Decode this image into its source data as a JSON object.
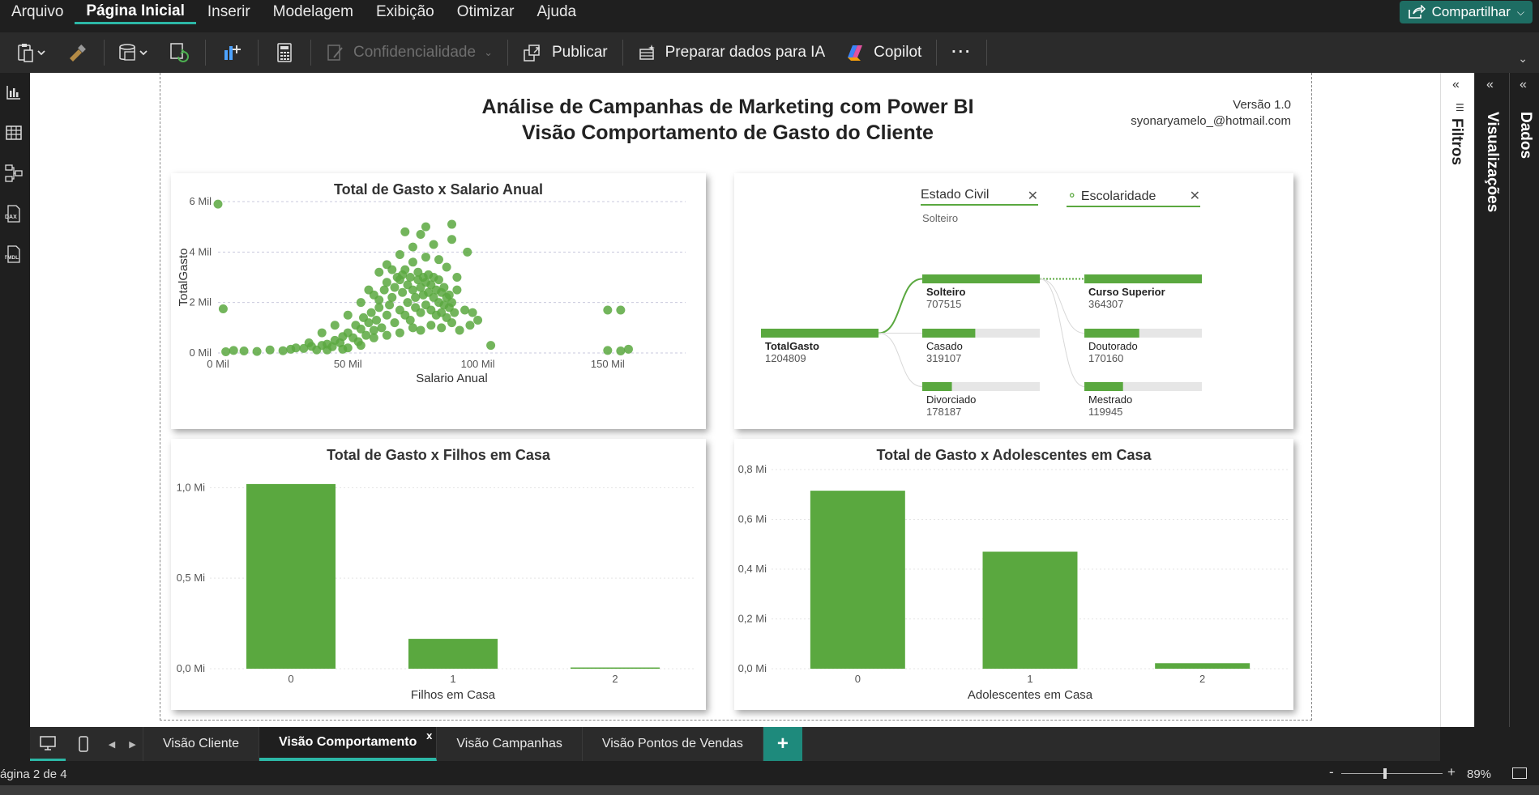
{
  "menu": {
    "items": [
      "Arquivo",
      "Página Inicial",
      "Inserir",
      "Modelagem",
      "Exibição",
      "Otimizar",
      "Ajuda"
    ],
    "share_label": "Compartilhar"
  },
  "ribbon": {
    "confidentiality_label": "Confidencialidade",
    "publish_label": "Publicar",
    "prepare_ai_label": "Preparar dados para IA",
    "copilot_label": "Copilot",
    "more_label": "···"
  },
  "report": {
    "title_line1": "Análise de Campanhas de Marketing com Power BI",
    "title_line2": "Visão Comportamento de Gasto do Cliente",
    "version": "Versão 1.0",
    "email": "syonaryamelo_@hotmail.com"
  },
  "scatter_visual": {
    "title": "Total de Gasto x Salario Anual",
    "xlabel": "Salario Anual",
    "ylabel": "TotalGasto",
    "x_ticks": [
      "0 Mil",
      "50 Mil",
      "100 Mil",
      "150 Mil"
    ],
    "y_ticks": [
      "0 Mil",
      "2 Mil",
      "4 Mil",
      "6 Mil"
    ]
  },
  "decomp_tree": {
    "level1_header": "Estado Civil",
    "level1_selected": "Solteiro",
    "level2_header": "Escolaridade",
    "root": {
      "label": "TotalGasto",
      "value": "1204809"
    },
    "level1": [
      {
        "label": "Solteiro",
        "value": "707515",
        "fraction": 1.0
      },
      {
        "label": "Casado",
        "value": "319107",
        "fraction": 0.451
      },
      {
        "label": "Divorciado",
        "value": "178187",
        "fraction": 0.252
      }
    ],
    "level2": [
      {
        "label": "Curso Superior",
        "value": "364307",
        "fraction": 1.0
      },
      {
        "label": "Doutorado",
        "value": "170160",
        "fraction": 0.467
      },
      {
        "label": "Mestrado",
        "value": "119945",
        "fraction": 0.329
      }
    ]
  },
  "tabs": {
    "items": [
      "Visão Cliente",
      "Visão Comportamento",
      "Visão Campanhas",
      "Visão Pontos de Vendas"
    ],
    "add_label": "+",
    "close_label": "x"
  },
  "status": {
    "page_info": "ágina 2 de 4",
    "zoom": "89%"
  },
  "panes": {
    "filters": "Filtros",
    "visualizations": "Visualizações",
    "data": "Dados"
  },
  "colors": {
    "accent": "#2cb7a6",
    "bar_green": "#5aa83f",
    "point_green": "#5aa83f"
  },
  "chart_data": [
    {
      "type": "scatter",
      "title": "Total de Gasto x Salario Anual",
      "xlabel": "Salario Anual",
      "ylabel": "TotalGasto",
      "xlim": [
        0,
        180000
      ],
      "ylim": [
        0,
        6000
      ],
      "x_tick_labels": [
        "0 Mil",
        "50 Mil",
        "100 Mil",
        "150 Mil"
      ],
      "y_tick_labels": [
        "0 Mil",
        "2 Mil",
        "4 Mil",
        "6 Mil"
      ],
      "points": [
        [
          0,
          5900
        ],
        [
          2000,
          1750
        ],
        [
          3000,
          50
        ],
        [
          6000,
          100
        ],
        [
          10000,
          80
        ],
        [
          15000,
          60
        ],
        [
          20000,
          120
        ],
        [
          25000,
          90
        ],
        [
          28000,
          150
        ],
        [
          30000,
          200
        ],
        [
          33000,
          180
        ],
        [
          36000,
          260
        ],
        [
          38000,
          120
        ],
        [
          40000,
          300
        ],
        [
          42000,
          350
        ],
        [
          44000,
          250
        ],
        [
          45000,
          500
        ],
        [
          47000,
          400
        ],
        [
          48000,
          650
        ],
        [
          50000,
          800
        ],
        [
          52000,
          600
        ],
        [
          53000,
          1100
        ],
        [
          54000,
          450
        ],
        [
          55000,
          950
        ],
        [
          56000,
          1400
        ],
        [
          57000,
          700
        ],
        [
          58000,
          1200
        ],
        [
          59000,
          1600
        ],
        [
          60000,
          900
        ],
        [
          60000,
          2300
        ],
        [
          61000,
          1300
        ],
        [
          62000,
          1800
        ],
        [
          62000,
          2100
        ],
        [
          63000,
          1000
        ],
        [
          64000,
          2500
        ],
        [
          65000,
          1500
        ],
        [
          65000,
          2800
        ],
        [
          66000,
          1900
        ],
        [
          67000,
          2200
        ],
        [
          67000,
          3300
        ],
        [
          68000,
          1200
        ],
        [
          68000,
          2600
        ],
        [
          69000,
          3000
        ],
        [
          70000,
          1700
        ],
        [
          70000,
          2900
        ],
        [
          71000,
          3100
        ],
        [
          71000,
          2400
        ],
        [
          72000,
          1500
        ],
        [
          72000,
          3300
        ],
        [
          73000,
          2000
        ],
        [
          73000,
          2700
        ],
        [
          74000,
          1300
        ],
        [
          74000,
          3000
        ],
        [
          75000,
          2500
        ],
        [
          75000,
          3600
        ],
        [
          76000,
          2200
        ],
        [
          76000,
          1800
        ],
        [
          77000,
          2900
        ],
        [
          77000,
          3200
        ],
        [
          78000,
          1600
        ],
        [
          78000,
          2600
        ],
        [
          79000,
          2300
        ],
        [
          79000,
          3000
        ],
        [
          80000,
          1900
        ],
        [
          80000,
          2800
        ],
        [
          81000,
          2400
        ],
        [
          81000,
          3100
        ],
        [
          82000,
          1700
        ],
        [
          82000,
          2700
        ],
        [
          83000,
          2200
        ],
        [
          83000,
          3000
        ],
        [
          84000,
          1500
        ],
        [
          84000,
          2500
        ],
        [
          85000,
          2000
        ],
        [
          85000,
          2900
        ],
        [
          86000,
          1600
        ],
        [
          86000,
          2400
        ],
        [
          87000,
          1900
        ],
        [
          87000,
          2600
        ],
        [
          88000,
          1400
        ],
        [
          88000,
          2200
        ],
        [
          89000,
          1800
        ],
        [
          89000,
          2300
        ],
        [
          90000,
          1200
        ],
        [
          90000,
          2000
        ],
        [
          91000,
          1600
        ],
        [
          92000,
          2500
        ],
        [
          93000,
          900
        ],
        [
          95000,
          1700
        ],
        [
          97000,
          1100
        ],
        [
          98000,
          1600
        ],
        [
          100000,
          1300
        ],
        [
          105000,
          300
        ],
        [
          72000,
          4800
        ],
        [
          78000,
          4700
        ],
        [
          80000,
          5000
        ],
        [
          83000,
          4300
        ],
        [
          90000,
          4500
        ],
        [
          90000,
          5100
        ],
        [
          96000,
          4000
        ],
        [
          75000,
          4200
        ],
        [
          70000,
          3900
        ],
        [
          65000,
          3500
        ],
        [
          62000,
          3200
        ],
        [
          85000,
          3700
        ],
        [
          88000,
          3400
        ],
        [
          92000,
          3000
        ],
        [
          80000,
          3800
        ],
        [
          40000,
          800
        ],
        [
          50000,
          1500
        ],
        [
          45000,
          1100
        ],
        [
          35000,
          400
        ],
        [
          55000,
          2000
        ],
        [
          58000,
          2500
        ],
        [
          150000,
          1700
        ],
        [
          155000,
          1700
        ],
        [
          150000,
          100
        ],
        [
          155000,
          80
        ],
        [
          158000,
          150
        ],
        [
          75000,
          1000
        ],
        [
          78000,
          900
        ],
        [
          82000,
          1100
        ],
        [
          86000,
          1000
        ],
        [
          70000,
          800
        ],
        [
          65000,
          700
        ],
        [
          60000,
          600
        ],
        [
          55000,
          300
        ],
        [
          50000,
          200
        ],
        [
          48000,
          150
        ],
        [
          42000,
          120
        ]
      ]
    },
    {
      "type": "decomposition_tree",
      "root": {
        "name": "TotalGasto",
        "value": 1204809
      },
      "levels": [
        {
          "field": "Estado Civil",
          "selected": "Solteiro",
          "items": [
            {
              "name": "Solteiro",
              "value": 707515
            },
            {
              "name": "Casado",
              "value": 319107
            },
            {
              "name": "Divorciado",
              "value": 178187
            }
          ]
        },
        {
          "field": "Escolaridade",
          "items": [
            {
              "name": "Curso Superior",
              "value": 364307
            },
            {
              "name": "Doutorado",
              "value": 170160
            },
            {
              "name": "Mestrado",
              "value": 119945
            }
          ]
        }
      ]
    },
    {
      "type": "bar",
      "title": "Total de Gasto x Filhos em Casa",
      "xlabel": "Filhos em Casa",
      "ylabel": "",
      "categories": [
        "0",
        "1",
        "2"
      ],
      "values": [
        1.02,
        0.165,
        0.005
      ],
      "ylim": [
        0,
        1.1
      ],
      "y_ticks": [
        0,
        0.5,
        1.0
      ],
      "y_tick_labels": [
        "0,0 Mi",
        "0,5 Mi",
        "1,0 Mi"
      ]
    },
    {
      "type": "bar",
      "title": "Total de Gasto x Adolescentes em Casa",
      "xlabel": "Adolescentes em Casa",
      "ylabel": "",
      "categories": [
        "0",
        "1",
        "2"
      ],
      "values": [
        0.715,
        0.47,
        0.022
      ],
      "ylim": [
        0,
        0.8
      ],
      "y_ticks": [
        0,
        0.2,
        0.4,
        0.6,
        0.8
      ],
      "y_tick_labels": [
        "0,0 Mi",
        "0,2 Mi",
        "0,4 Mi",
        "0,6 Mi",
        "0,8 Mi"
      ]
    }
  ]
}
